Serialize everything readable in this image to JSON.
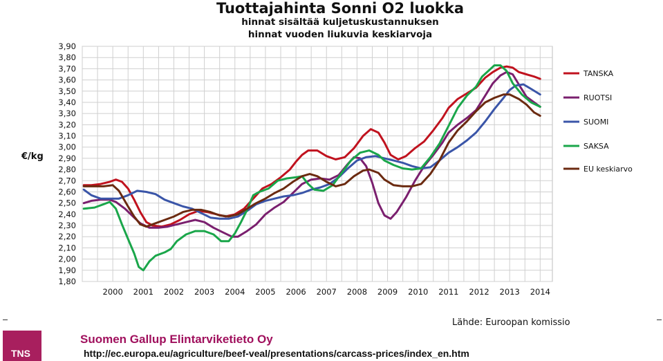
{
  "chart_data": {
    "type": "line",
    "title": "Tuottajahinta Sonni O2 luokka",
    "subtitle": [
      "hinnat sisältää kuljetuskustannuksen",
      "hinnat vuoden liukuvia keskiarvoja"
    ],
    "ylabel": "€/kg",
    "xlabel": "",
    "ylim": [
      1.8,
      3.9
    ],
    "xlim": [
      1999.0,
      2014.4
    ],
    "y_ticks": [
      "1,80",
      "1,90",
      "2,00",
      "2,10",
      "2,20",
      "2,30",
      "2,40",
      "2,50",
      "2,60",
      "2,70",
      "2,80",
      "2,90",
      "3,00",
      "3,10",
      "3,20",
      "3,30",
      "3,40",
      "3,50",
      "3,60",
      "3,70",
      "3,80",
      "3,90"
    ],
    "x_ticks": [
      "2000",
      "2001",
      "2002",
      "2003",
      "2004",
      "2005",
      "2006",
      "2007",
      "2008",
      "2009",
      "2010",
      "2011",
      "2012",
      "2013",
      "2014"
    ],
    "grid": true,
    "legend_position": "right",
    "series": [
      {
        "name": "TANSKA",
        "color": "#c0121e",
        "points": [
          [
            1999.05,
            2.66
          ],
          [
            1999.3,
            2.66
          ],
          [
            1999.6,
            2.67
          ],
          [
            1999.9,
            2.69
          ],
          [
            2000.1,
            2.71
          ],
          [
            2000.3,
            2.69
          ],
          [
            2000.5,
            2.63
          ],
          [
            2000.7,
            2.53
          ],
          [
            2000.9,
            2.42
          ],
          [
            2001.1,
            2.33
          ],
          [
            2001.3,
            2.3
          ],
          [
            2001.6,
            2.29
          ],
          [
            2001.9,
            2.31
          ],
          [
            2002.2,
            2.35
          ],
          [
            2002.5,
            2.4
          ],
          [
            2002.8,
            2.43
          ],
          [
            2003.1,
            2.42
          ],
          [
            2003.4,
            2.4
          ],
          [
            2003.7,
            2.38
          ],
          [
            2004.0,
            2.4
          ],
          [
            2004.3,
            2.45
          ],
          [
            2004.6,
            2.54
          ],
          [
            2004.9,
            2.63
          ],
          [
            2005.2,
            2.67
          ],
          [
            2005.5,
            2.73
          ],
          [
            2005.8,
            2.8
          ],
          [
            2006.0,
            2.87
          ],
          [
            2006.2,
            2.93
          ],
          [
            2006.4,
            2.97
          ],
          [
            2006.7,
            2.97
          ],
          [
            2007.0,
            2.92
          ],
          [
            2007.3,
            2.89
          ],
          [
            2007.6,
            2.91
          ],
          [
            2007.9,
            2.99
          ],
          [
            2008.2,
            3.1
          ],
          [
            2008.45,
            3.16
          ],
          [
            2008.7,
            3.13
          ],
          [
            2008.9,
            3.04
          ],
          [
            2009.1,
            2.93
          ],
          [
            2009.35,
            2.89
          ],
          [
            2009.6,
            2.92
          ],
          [
            2009.9,
            2.99
          ],
          [
            2010.2,
            3.05
          ],
          [
            2010.5,
            3.15
          ],
          [
            2010.8,
            3.26
          ],
          [
            2011.0,
            3.35
          ],
          [
            2011.3,
            3.43
          ],
          [
            2011.6,
            3.48
          ],
          [
            2011.9,
            3.53
          ],
          [
            2012.2,
            3.62
          ],
          [
            2012.45,
            3.67
          ],
          [
            2012.7,
            3.71
          ],
          [
            2012.9,
            3.72
          ],
          [
            2013.1,
            3.71
          ],
          [
            2013.3,
            3.67
          ],
          [
            2013.55,
            3.65
          ],
          [
            2013.8,
            3.63
          ],
          [
            2014.0,
            3.61
          ]
        ]
      },
      {
        "name": "RUOTSI",
        "color": "#7a1f6e",
        "points": [
          [
            1999.05,
            2.5
          ],
          [
            1999.3,
            2.52
          ],
          [
            1999.6,
            2.53
          ],
          [
            1999.9,
            2.53
          ],
          [
            2000.1,
            2.51
          ],
          [
            2000.4,
            2.45
          ],
          [
            2000.7,
            2.37
          ],
          [
            2000.9,
            2.32
          ],
          [
            2001.2,
            2.28
          ],
          [
            2001.5,
            2.28
          ],
          [
            2001.8,
            2.29
          ],
          [
            2002.1,
            2.31
          ],
          [
            2002.4,
            2.33
          ],
          [
            2002.7,
            2.35
          ],
          [
            2003.0,
            2.33
          ],
          [
            2003.3,
            2.28
          ],
          [
            2003.6,
            2.24
          ],
          [
            2003.9,
            2.2
          ],
          [
            2004.1,
            2.2
          ],
          [
            2004.4,
            2.25
          ],
          [
            2004.7,
            2.31
          ],
          [
            2005.0,
            2.4
          ],
          [
            2005.3,
            2.46
          ],
          [
            2005.6,
            2.51
          ],
          [
            2005.9,
            2.59
          ],
          [
            2006.2,
            2.67
          ],
          [
            2006.5,
            2.71
          ],
          [
            2006.8,
            2.72
          ],
          [
            2007.1,
            2.71
          ],
          [
            2007.4,
            2.75
          ],
          [
            2007.7,
            2.85
          ],
          [
            2007.9,
            2.91
          ],
          [
            2008.1,
            2.9
          ],
          [
            2008.3,
            2.83
          ],
          [
            2008.5,
            2.68
          ],
          [
            2008.7,
            2.5
          ],
          [
            2008.9,
            2.39
          ],
          [
            2009.1,
            2.36
          ],
          [
            2009.3,
            2.42
          ],
          [
            2009.6,
            2.55
          ],
          [
            2009.9,
            2.7
          ],
          [
            2010.2,
            2.83
          ],
          [
            2010.5,
            2.93
          ],
          [
            2010.8,
            3.04
          ],
          [
            2011.0,
            3.13
          ],
          [
            2011.3,
            3.2
          ],
          [
            2011.6,
            3.26
          ],
          [
            2011.9,
            3.33
          ],
          [
            2012.2,
            3.46
          ],
          [
            2012.45,
            3.57
          ],
          [
            2012.7,
            3.64
          ],
          [
            2012.9,
            3.67
          ],
          [
            2013.1,
            3.65
          ],
          [
            2013.3,
            3.56
          ],
          [
            2013.55,
            3.45
          ],
          [
            2013.8,
            3.4
          ],
          [
            2014.0,
            3.36
          ]
        ]
      },
      {
        "name": "SUOMI",
        "color": "#3a55a8",
        "points": [
          [
            1999.05,
            2.62
          ],
          [
            1999.3,
            2.57
          ],
          [
            1999.6,
            2.54
          ],
          [
            1999.9,
            2.54
          ],
          [
            2000.2,
            2.54
          ],
          [
            2000.5,
            2.57
          ],
          [
            2000.8,
            2.61
          ],
          [
            2001.1,
            2.6
          ],
          [
            2001.4,
            2.58
          ],
          [
            2001.7,
            2.53
          ],
          [
            2002.0,
            2.5
          ],
          [
            2002.3,
            2.47
          ],
          [
            2002.6,
            2.45
          ],
          [
            2002.9,
            2.41
          ],
          [
            2003.2,
            2.37
          ],
          [
            2003.5,
            2.36
          ],
          [
            2003.8,
            2.36
          ],
          [
            2004.1,
            2.38
          ],
          [
            2004.4,
            2.43
          ],
          [
            2004.7,
            2.49
          ],
          [
            2005.0,
            2.52
          ],
          [
            2005.3,
            2.54
          ],
          [
            2005.6,
            2.56
          ],
          [
            2005.9,
            2.57
          ],
          [
            2006.2,
            2.59
          ],
          [
            2006.5,
            2.62
          ],
          [
            2006.8,
            2.64
          ],
          [
            2007.1,
            2.67
          ],
          [
            2007.4,
            2.73
          ],
          [
            2007.7,
            2.81
          ],
          [
            2008.0,
            2.88
          ],
          [
            2008.3,
            2.91
          ],
          [
            2008.6,
            2.92
          ],
          [
            2008.9,
            2.9
          ],
          [
            2009.2,
            2.88
          ],
          [
            2009.5,
            2.86
          ],
          [
            2009.8,
            2.83
          ],
          [
            2010.1,
            2.81
          ],
          [
            2010.4,
            2.82
          ],
          [
            2010.7,
            2.88
          ],
          [
            2011.0,
            2.95
          ],
          [
            2011.3,
            3.0
          ],
          [
            2011.6,
            3.06
          ],
          [
            2011.9,
            3.13
          ],
          [
            2012.2,
            3.23
          ],
          [
            2012.5,
            3.34
          ],
          [
            2012.8,
            3.44
          ],
          [
            2013.0,
            3.51
          ],
          [
            2013.2,
            3.55
          ],
          [
            2013.45,
            3.56
          ],
          [
            2013.7,
            3.52
          ],
          [
            2014.0,
            3.47
          ]
        ]
      },
      {
        "name": "SAKSA",
        "color": "#1aa64a",
        "points": [
          [
            1999.05,
            2.45
          ],
          [
            1999.4,
            2.46
          ],
          [
            1999.7,
            2.49
          ],
          [
            1999.9,
            2.51
          ],
          [
            2000.1,
            2.45
          ],
          [
            2000.3,
            2.31
          ],
          [
            2000.5,
            2.18
          ],
          [
            2000.7,
            2.05
          ],
          [
            2000.85,
            1.93
          ],
          [
            2001.0,
            1.9
          ],
          [
            2001.2,
            1.98
          ],
          [
            2001.4,
            2.03
          ],
          [
            2001.7,
            2.06
          ],
          [
            2001.9,
            2.09
          ],
          [
            2002.1,
            2.16
          ],
          [
            2002.4,
            2.22
          ],
          [
            2002.7,
            2.25
          ],
          [
            2003.0,
            2.25
          ],
          [
            2003.3,
            2.22
          ],
          [
            2003.55,
            2.16
          ],
          [
            2003.8,
            2.16
          ],
          [
            2004.0,
            2.23
          ],
          [
            2004.2,
            2.33
          ],
          [
            2004.4,
            2.44
          ],
          [
            2004.6,
            2.57
          ],
          [
            2004.8,
            2.6
          ],
          [
            2005.1,
            2.63
          ],
          [
            2005.4,
            2.7
          ],
          [
            2005.7,
            2.72
          ],
          [
            2006.0,
            2.73
          ],
          [
            2006.2,
            2.74
          ],
          [
            2006.4,
            2.67
          ],
          [
            2006.6,
            2.62
          ],
          [
            2006.9,
            2.61
          ],
          [
            2007.2,
            2.66
          ],
          [
            2007.5,
            2.77
          ],
          [
            2007.8,
            2.88
          ],
          [
            2008.1,
            2.95
          ],
          [
            2008.4,
            2.97
          ],
          [
            2008.7,
            2.93
          ],
          [
            2008.9,
            2.88
          ],
          [
            2009.2,
            2.84
          ],
          [
            2009.5,
            2.81
          ],
          [
            2009.8,
            2.8
          ],
          [
            2010.1,
            2.81
          ],
          [
            2010.4,
            2.91
          ],
          [
            2010.7,
            3.03
          ],
          [
            2011.0,
            3.19
          ],
          [
            2011.3,
            3.35
          ],
          [
            2011.6,
            3.46
          ],
          [
            2011.9,
            3.54
          ],
          [
            2012.1,
            3.63
          ],
          [
            2012.3,
            3.68
          ],
          [
            2012.5,
            3.73
          ],
          [
            2012.7,
            3.73
          ],
          [
            2012.9,
            3.68
          ],
          [
            2013.1,
            3.57
          ],
          [
            2013.4,
            3.47
          ],
          [
            2013.7,
            3.4
          ],
          [
            2014.0,
            3.36
          ]
        ]
      },
      {
        "name": "EU keskiarvo",
        "color": "#6b2a10",
        "points": [
          [
            1999.05,
            2.65
          ],
          [
            1999.4,
            2.65
          ],
          [
            1999.7,
            2.65
          ],
          [
            2000.0,
            2.66
          ],
          [
            2000.2,
            2.61
          ],
          [
            2000.5,
            2.47
          ],
          [
            2000.7,
            2.38
          ],
          [
            2000.9,
            2.31
          ],
          [
            2001.1,
            2.29
          ],
          [
            2001.4,
            2.32
          ],
          [
            2001.7,
            2.35
          ],
          [
            2002.0,
            2.38
          ],
          [
            2002.3,
            2.42
          ],
          [
            2002.6,
            2.44
          ],
          [
            2002.9,
            2.44
          ],
          [
            2003.2,
            2.42
          ],
          [
            2003.5,
            2.39
          ],
          [
            2003.8,
            2.38
          ],
          [
            2004.1,
            2.4
          ],
          [
            2004.4,
            2.45
          ],
          [
            2004.7,
            2.5
          ],
          [
            2005.0,
            2.54
          ],
          [
            2005.3,
            2.59
          ],
          [
            2005.6,
            2.63
          ],
          [
            2005.9,
            2.69
          ],
          [
            2006.2,
            2.74
          ],
          [
            2006.45,
            2.76
          ],
          [
            2006.7,
            2.74
          ],
          [
            2007.0,
            2.69
          ],
          [
            2007.3,
            2.65
          ],
          [
            2007.6,
            2.67
          ],
          [
            2007.9,
            2.74
          ],
          [
            2008.2,
            2.79
          ],
          [
            2008.4,
            2.8
          ],
          [
            2008.7,
            2.77
          ],
          [
            2008.9,
            2.71
          ],
          [
            2009.2,
            2.66
          ],
          [
            2009.5,
            2.65
          ],
          [
            2009.8,
            2.65
          ],
          [
            2010.1,
            2.67
          ],
          [
            2010.4,
            2.76
          ],
          [
            2010.7,
            2.88
          ],
          [
            2011.0,
            3.04
          ],
          [
            2011.3,
            3.15
          ],
          [
            2011.6,
            3.23
          ],
          [
            2011.9,
            3.32
          ],
          [
            2012.2,
            3.4
          ],
          [
            2012.5,
            3.44
          ],
          [
            2012.8,
            3.47
          ],
          [
            2013.0,
            3.47
          ],
          [
            2013.3,
            3.43
          ],
          [
            2013.55,
            3.38
          ],
          [
            2013.8,
            3.31
          ],
          [
            2014.0,
            3.28
          ]
        ]
      }
    ]
  },
  "footer": {
    "source": "Lähde: Euroopan komissio",
    "company": "Suomen Gallup Elintarviketieto Oy",
    "url": "http://ec.europa.eu/agriculture/beef-veal/presentations/carcass-prices/index_en.htm",
    "logo_text": "TNS"
  }
}
